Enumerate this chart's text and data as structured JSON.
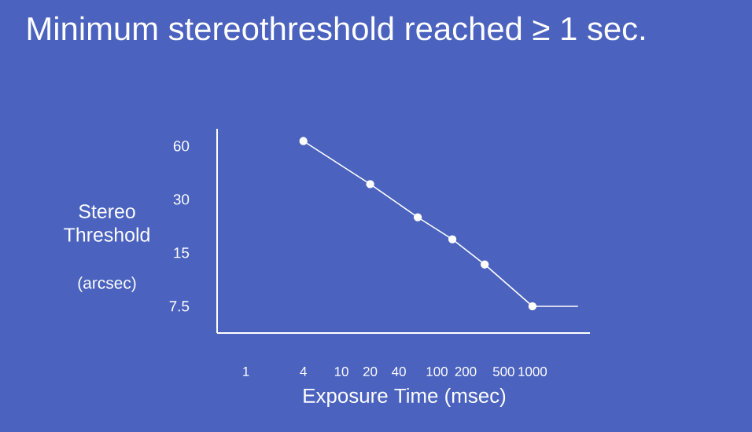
{
  "chart_data": {
    "type": "line",
    "title": "Minimum stereothreshold reached ≥ 1 sec.",
    "xlabel": "Exposure Time  (msec)",
    "ylabel": "Stereo Threshold",
    "annotations": [
      "(arcsec)"
    ],
    "log": "xy",
    "xlim": [
      0.5,
      4000
    ],
    "ylim": [
      5.3,
      75
    ],
    "xticks": [
      1,
      4,
      10,
      20,
      40,
      100,
      200,
      500,
      1000
    ],
    "yticks": [
      7.5,
      15,
      30,
      60
    ],
    "marker": "circle",
    "line_style": "solid",
    "grid": false,
    "series": [
      {
        "color": "#ffffff",
        "x": [
          4,
          20,
          63,
          145,
          316,
          1000
        ],
        "values": [
          64,
          36.6,
          23.8,
          17.9,
          12.9,
          7.5
        ]
      },
      {
        "color": "#ffffff",
        "marker": "none",
        "x": [
          1000,
          3000
        ],
        "values": [
          7.5,
          7.5
        ]
      }
    ]
  }
}
